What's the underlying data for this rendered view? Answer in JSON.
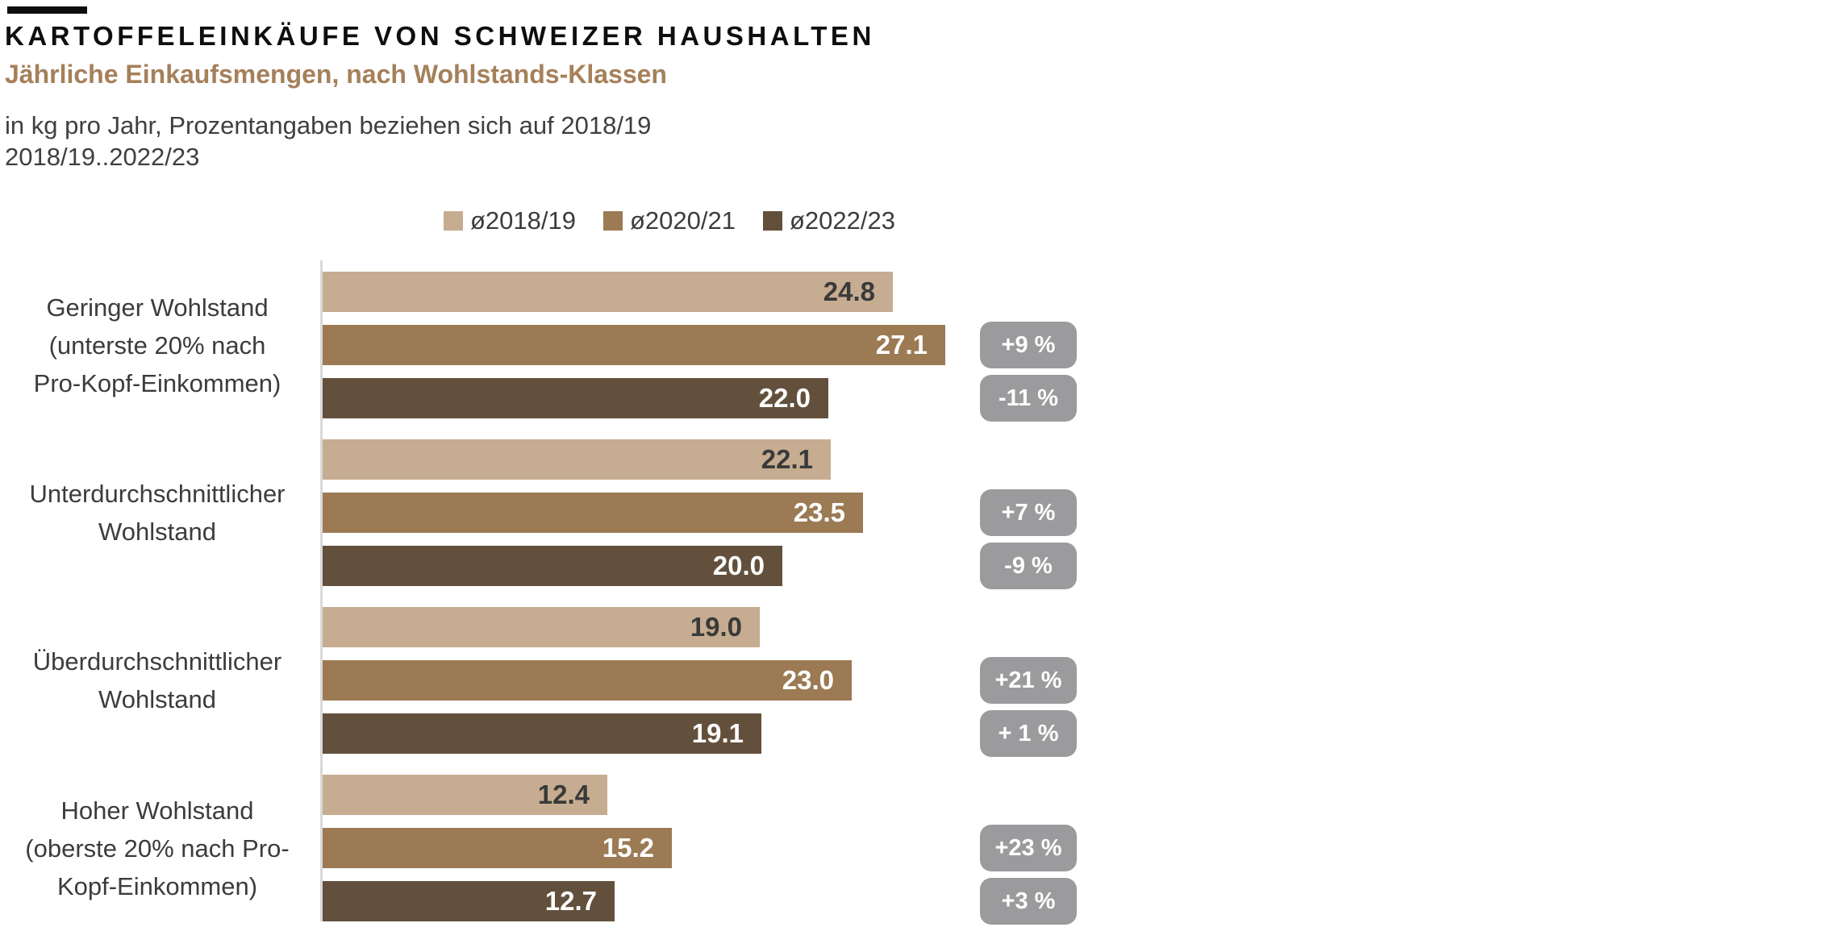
{
  "header": {
    "title": "KARTOFFELEINKÄUFE VON SCHWEIZER HAUSHALTEN",
    "subtitle": "Jährliche Einkaufsmengen, nach Wohlstands-Klassen",
    "note_line1": "in kg pro Jahr, Prozentangaben beziehen sich auf 2018/19",
    "note_line2": "2018/19..2022/23"
  },
  "colors": {
    "title_text": "#0E0E0E",
    "subtitle_text": "#A5805A",
    "body_text": "#3C3C3C",
    "axis_line": "#D9D9D9",
    "badge_background": "#9B9B9D",
    "badge_text": "#FFFFFF"
  },
  "chart_data": {
    "type": "bar",
    "orientation": "horizontal",
    "value_unit": "kg pro Jahr",
    "xlim": [
      0,
      30
    ],
    "grid": false,
    "legend_position": "top-center",
    "series": [
      {
        "name": "ø2018/19",
        "color": "#C6AC90",
        "value_label_color": "#3A3A3A"
      },
      {
        "name": "ø2020/21",
        "color": "#9B7A54",
        "value_label_color": "#FFFFFF"
      },
      {
        "name": "ø2022/23",
        "color": "#63503C",
        "value_label_color": "#FFFFFF"
      }
    ],
    "groups": [
      {
        "category": "Geringer Wohlstand (unterste 20% nach Pro-Kopf-Einkommen)",
        "label_lines": [
          "Geringer Wohlstand",
          "(unterste 20% nach",
          "Pro-Kopf-Einkommen)"
        ],
        "bars": [
          {
            "series": "ø2018/19",
            "value": 24.8,
            "label": "24.8",
            "badge": null
          },
          {
            "series": "ø2020/21",
            "value": 27.1,
            "label": "27.1",
            "badge": "+9 %"
          },
          {
            "series": "ø2022/23",
            "value": 22.0,
            "label": "22.0",
            "badge": "-11 %"
          }
        ]
      },
      {
        "category": "Unterdurchschnittlicher Wohlstand",
        "label_lines": [
          "Unterdurchschnittlicher",
          "Wohlstand"
        ],
        "bars": [
          {
            "series": "ø2018/19",
            "value": 22.1,
            "label": "22.1",
            "badge": null
          },
          {
            "series": "ø2020/21",
            "value": 23.5,
            "label": "23.5",
            "badge": "+7 %"
          },
          {
            "series": "ø2022/23",
            "value": 20.0,
            "label": "20.0",
            "badge": "-9 %"
          }
        ]
      },
      {
        "category": "Überdurchschnittlicher Wohlstand",
        "label_lines": [
          "Überdurchschnittlicher",
          "Wohlstand"
        ],
        "bars": [
          {
            "series": "ø2018/19",
            "value": 19.0,
            "label": "19.0",
            "badge": null
          },
          {
            "series": "ø2020/21",
            "value": 23.0,
            "label": "23.0",
            "badge": "+21 %"
          },
          {
            "series": "ø2022/23",
            "value": 19.1,
            "label": "19.1",
            "badge": "+ 1 %"
          }
        ]
      },
      {
        "category": "Hoher Wohlstand (oberste 20% nach Pro-Kopf-Einkommen)",
        "label_lines": [
          "Hoher Wohlstand",
          "(oberste 20% nach Pro-",
          "Kopf-Einkommen)"
        ],
        "bars": [
          {
            "series": "ø2018/19",
            "value": 12.4,
            "label": "12.4",
            "badge": null
          },
          {
            "series": "ø2020/21",
            "value": 15.2,
            "label": "15.2",
            "badge": "+23 %"
          },
          {
            "series": "ø2022/23",
            "value": 12.7,
            "label": "12.7",
            "badge": "+3 %"
          }
        ]
      }
    ]
  }
}
